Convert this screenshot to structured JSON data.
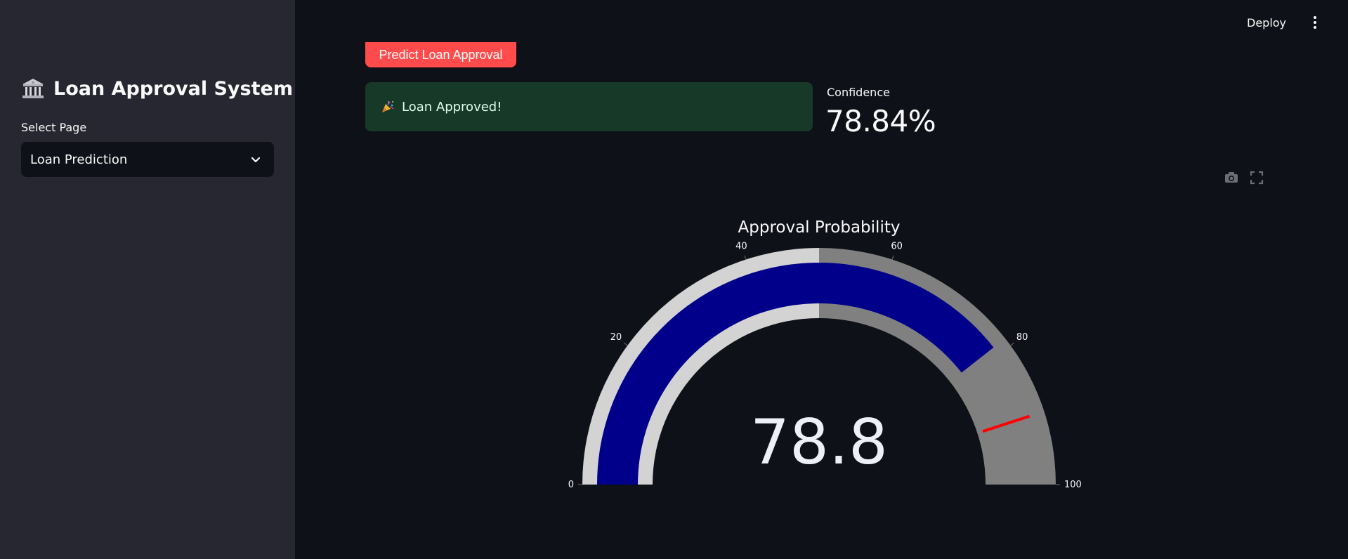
{
  "sidebar": {
    "title": "Loan Approval System",
    "select_label": "Select Page",
    "select_value": "Loan Prediction"
  },
  "header": {
    "deploy_label": "Deploy"
  },
  "main": {
    "predict_button_label": "Predict Loan Approval",
    "result_message": "Loan Approved!",
    "confidence_label": "Confidence",
    "confidence_value": "78.84%"
  },
  "colors": {
    "sidebar_bg": "#262730",
    "main_bg": "#0e1117",
    "accent": "#ff4b4b",
    "success_bg": "#173928",
    "gauge_bar": "#00008b",
    "gauge_step_low": "#d3d3d3",
    "gauge_step_high": "#808080",
    "threshold": "#ff0000"
  },
  "chart_data": {
    "type": "gauge",
    "title": "Approval Probability",
    "value": 78.8,
    "value_text": "78.8",
    "range": [
      0,
      100
    ],
    "ticks": [
      0,
      20,
      40,
      60,
      80,
      100
    ],
    "tick_labels": [
      "0",
      "20",
      "40",
      "60",
      "80",
      "100"
    ],
    "steps": [
      {
        "range": [
          0,
          50
        ],
        "color": "#d3d3d3"
      },
      {
        "range": [
          50,
          100
        ],
        "color": "#808080"
      }
    ],
    "bar_color": "#00008b",
    "threshold": 90,
    "threshold_color": "#ff0000"
  }
}
